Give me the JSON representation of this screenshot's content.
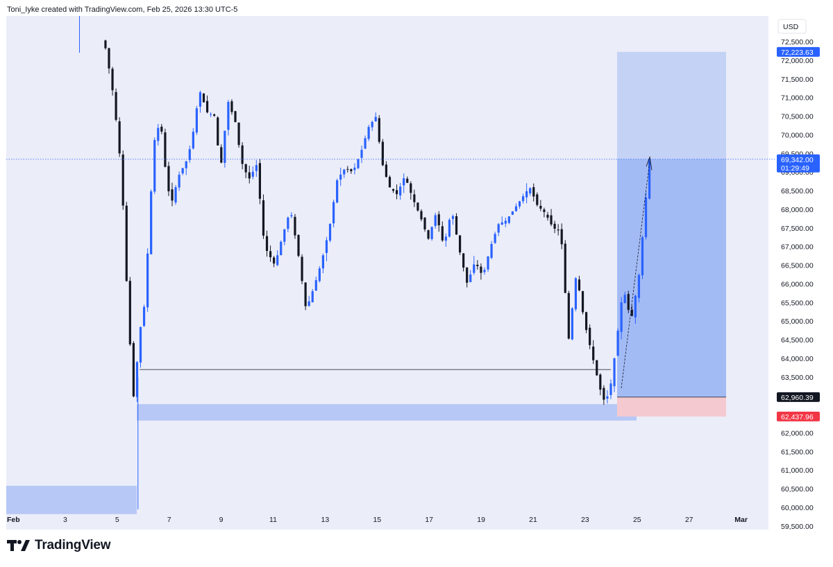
{
  "header": {
    "attribution": "Toni_Iyke created with TradingView.com, Feb 25, 2026 13:30 UTC-5"
  },
  "footer": {
    "brand": "TradingView",
    "logo_icon": "tradingview-logo-icon"
  },
  "colors": {
    "background": "#ebedf8",
    "up_candle": "#2962ff",
    "down_candle": "#131722",
    "zone_blue": "#b7c8f6",
    "target_zone": "#a3bbf5",
    "target_zone_light": "#c4d2f6",
    "stop_zone": "#f4c9cf",
    "label_blue": "#2962ff",
    "label_red": "#f23645",
    "label_black": "#131722"
  },
  "chart_data": {
    "type": "candlestick",
    "title": "",
    "currency": "USD",
    "ylim": [
      59500,
      72500
    ],
    "y_ticks": [
      72500,
      72000,
      71500,
      71000,
      70500,
      70000,
      69500,
      69000,
      68500,
      68000,
      67500,
      67000,
      66500,
      66000,
      65500,
      65000,
      64500,
      64000,
      63500,
      63000,
      62500,
      62000,
      61500,
      61000,
      60500,
      60000,
      59500
    ],
    "y_tick_labels": [
      "72,500.00",
      "72,000.00",
      "71,500.00",
      "71,000.00",
      "70,500.00",
      "70,000.00",
      "69,500.00",
      "69,000.00",
      "68,500.00",
      "68,000.00",
      "67,500.00",
      "67,000.00",
      "66,500.00",
      "66,000.00",
      "65,500.00",
      "65,000.00",
      "64,500.00",
      "64,000.00",
      "63,500.00",
      "63,000.00",
      "62,500.00",
      "62,000.00",
      "61,500.00",
      "61,000.00",
      "60,500.00",
      "60,000.00",
      "59,500.00"
    ],
    "x_range_days": [
      1,
      29.6
    ],
    "x_ticks": [
      {
        "day": 1,
        "label": "Feb"
      },
      {
        "day": 3,
        "label": "3"
      },
      {
        "day": 5,
        "label": "5"
      },
      {
        "day": 7,
        "label": "7"
      },
      {
        "day": 9,
        "label": "9"
      },
      {
        "day": 11,
        "label": "11"
      },
      {
        "day": 13,
        "label": "13"
      },
      {
        "day": 15,
        "label": "15"
      },
      {
        "day": 17,
        "label": "17"
      },
      {
        "day": 19,
        "label": "19"
      },
      {
        "day": 21,
        "label": "21"
      },
      {
        "day": 23,
        "label": "23"
      },
      {
        "day": 25,
        "label": "25"
      },
      {
        "day": 27,
        "label": "27"
      },
      {
        "day": 29,
        "label": "Mar"
      }
    ],
    "price_path": [
      [
        3.5,
        72600
      ],
      [
        4.5,
        72600
      ],
      [
        4.7,
        72300
      ],
      [
        5.0,
        71000
      ],
      [
        5.3,
        69000
      ],
      [
        5.5,
        66000
      ],
      [
        5.7,
        63500
      ],
      [
        5.8,
        62700
      ],
      [
        5.95,
        64500
      ],
      [
        6.2,
        65500
      ],
      [
        6.4,
        68000
      ],
      [
        6.55,
        69800
      ],
      [
        6.8,
        70400
      ],
      [
        7.0,
        69000
      ],
      [
        7.2,
        68100
      ],
      [
        7.5,
        68900
      ],
      [
        7.8,
        69300
      ],
      [
        8.0,
        69800
      ],
      [
        8.3,
        71200
      ],
      [
        8.6,
        70600
      ],
      [
        8.9,
        70500
      ],
      [
        9.1,
        69000
      ],
      [
        9.4,
        70900
      ],
      [
        9.7,
        70300
      ],
      [
        9.9,
        69300
      ],
      [
        10.2,
        68800
      ],
      [
        10.5,
        69200
      ],
      [
        10.8,
        67000
      ],
      [
        11.2,
        66500
      ],
      [
        11.5,
        67300
      ],
      [
        11.8,
        68000
      ],
      [
        12.1,
        66800
      ],
      [
        12.4,
        65300
      ],
      [
        12.7,
        65900
      ],
      [
        13.0,
        66600
      ],
      [
        13.3,
        67500
      ],
      [
        13.6,
        68800
      ],
      [
        13.9,
        69100
      ],
      [
        14.2,
        69000
      ],
      [
        14.5,
        69500
      ],
      [
        14.8,
        70200
      ],
      [
        15.1,
        70500
      ],
      [
        15.3,
        69300
      ],
      [
        15.6,
        68600
      ],
      [
        15.9,
        68400
      ],
      [
        16.2,
        68900
      ],
      [
        16.5,
        68300
      ],
      [
        16.8,
        67800
      ],
      [
        17.1,
        67200
      ],
      [
        17.4,
        67900
      ],
      [
        17.7,
        67000
      ],
      [
        18.0,
        68000
      ],
      [
        18.3,
        66900
      ],
      [
        18.6,
        66000
      ],
      [
        18.9,
        66600
      ],
      [
        19.2,
        66200
      ],
      [
        19.5,
        67000
      ],
      [
        19.8,
        67600
      ],
      [
        20.1,
        67700
      ],
      [
        20.4,
        68000
      ],
      [
        20.7,
        68300
      ],
      [
        21.0,
        68600
      ],
      [
        21.3,
        68100
      ],
      [
        21.6,
        67900
      ],
      [
        21.9,
        67500
      ],
      [
        22.2,
        67400
      ],
      [
        22.5,
        64500
      ],
      [
        22.8,
        66300
      ],
      [
        23.1,
        65000
      ],
      [
        23.4,
        64100
      ],
      [
        23.7,
        63200
      ],
      [
        23.9,
        62800
      ],
      [
        24.1,
        63200
      ],
      [
        24.3,
        64200
      ],
      [
        24.6,
        65900
      ],
      [
        24.9,
        65000
      ],
      [
        25.2,
        66200
      ],
      [
        25.4,
        67700
      ],
      [
        25.6,
        69342
      ]
    ],
    "zones": {
      "demand_top": 62770,
      "demand_bottom": 62330,
      "lower_top": 60580,
      "lower_bottom": 59820,
      "position_entry": 62960.39,
      "position_target": 72223.63,
      "position_stop": 62437.96
    },
    "levels": {
      "horizontal_line": 63700,
      "current_price": 69342.0
    },
    "price_labels": {
      "target": "72,223.63",
      "current": "69,342.00",
      "countdown": "01:29:49",
      "entry": "62,960.39",
      "stop": "62,437.96"
    }
  }
}
